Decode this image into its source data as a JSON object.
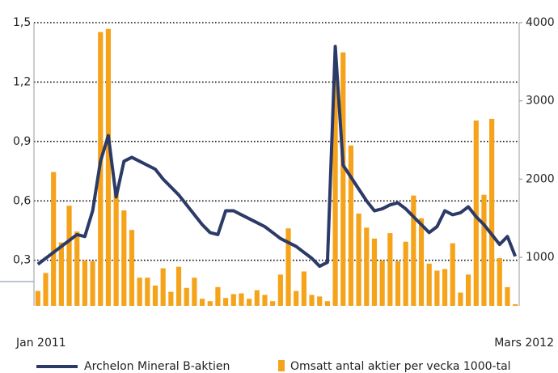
{
  "chart_data": {
    "type": "bar-line",
    "categories": [
      "Jan 2011",
      null,
      null,
      null,
      null,
      null,
      null,
      null,
      null,
      null,
      null,
      null,
      null,
      null,
      null,
      null,
      null,
      null,
      null,
      null,
      null,
      null,
      null,
      null,
      null,
      null,
      null,
      null,
      null,
      null,
      null,
      null,
      null,
      null,
      null,
      null,
      null,
      null,
      null,
      null,
      null,
      null,
      null,
      null,
      null,
      null,
      null,
      null,
      null,
      null,
      null,
      null,
      null,
      null,
      null,
      null,
      null,
      null,
      null,
      null,
      null,
      "Mars 2012"
    ],
    "series": [
      {
        "name": "Omsatt antal aktier per vecka 1000-tal",
        "type": "bar",
        "axis": "y2",
        "color": "#f5a31a",
        "values": [
          570,
          800,
          2090,
          1190,
          1660,
          1330,
          960,
          950,
          3880,
          3920,
          1880,
          1600,
          1350,
          740,
          740,
          640,
          860,
          560,
          880,
          610,
          740,
          470,
          440,
          620,
          480,
          530,
          540,
          470,
          580,
          520,
          440,
          780,
          1370,
          570,
          820,
          520,
          500,
          440,
          3430,
          3620,
          2430,
          1560,
          1380,
          1240,
          960,
          1310,
          950,
          1200,
          1790,
          1500,
          920,
          830,
          850,
          1180,
          550,
          780,
          2750,
          1800,
          2770,
          990,
          620,
          400
        ]
      },
      {
        "name": "Archelon Mineral B-aktien",
        "type": "line",
        "axis": "y",
        "color": "#2b3a67",
        "values": [
          0.28,
          0.31,
          0.34,
          0.37,
          0.4,
          0.43,
          0.42,
          0.55,
          0.8,
          0.93,
          0.62,
          0.8,
          0.82,
          0.8,
          0.78,
          0.76,
          0.71,
          0.67,
          0.63,
          0.58,
          0.53,
          0.48,
          0.44,
          0.43,
          0.55,
          0.55,
          0.53,
          0.51,
          0.49,
          0.47,
          0.44,
          0.41,
          0.39,
          0.37,
          0.34,
          0.31,
          0.27,
          0.29,
          1.38,
          0.78,
          0.72,
          0.66,
          0.6,
          0.55,
          0.56,
          0.58,
          0.59,
          0.56,
          0.52,
          0.48,
          0.44,
          0.47,
          0.55,
          0.53,
          0.54,
          0.57,
          0.52,
          0.48,
          0.43,
          0.38,
          0.42,
          0.32
        ]
      }
    ],
    "ylim": [
      0.07,
      1.5
    ],
    "yticks": [
      {
        "value": 0.3,
        "label": "0,3"
      },
      {
        "value": 0.6,
        "label": "0,6"
      },
      {
        "value": 0.9,
        "label": "0,9"
      },
      {
        "value": 1.2,
        "label": "1,2"
      },
      {
        "value": 1.5,
        "label": "1,5"
      }
    ],
    "y2lim": [
      380,
      4000
    ],
    "y2ticks": [
      1000,
      2000,
      3000,
      4000
    ],
    "grid": true
  }
}
